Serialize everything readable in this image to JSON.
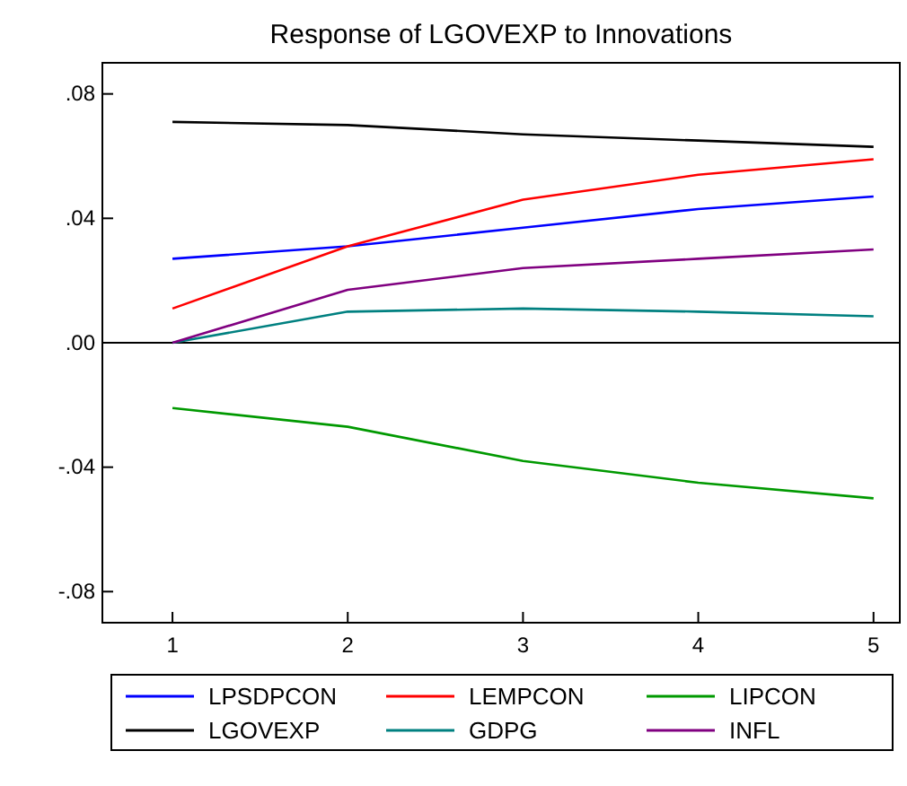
{
  "chart_data": {
    "type": "line",
    "title": "Response of LGOVEXP to Innovations",
    "x": [
      1,
      2,
      3,
      4,
      5
    ],
    "xlim": [
      0.6,
      5.15
    ],
    "xticks": [
      1,
      2,
      3,
      4,
      5
    ],
    "ylim": [
      -0.09,
      0.09
    ],
    "yticks": [
      {
        "value": 0.08,
        "label": ".08"
      },
      {
        "value": 0.04,
        "label": ".04"
      },
      {
        "value": 0,
        "label": ".00"
      },
      {
        "value": -0.04,
        "label": "-.04"
      },
      {
        "value": -0.08,
        "label": "-.08"
      }
    ],
    "series": [
      {
        "name": "LPSDPCON",
        "color": "#0000ff",
        "values": [
          0.027,
          0.031,
          0.037,
          0.043,
          0.047
        ]
      },
      {
        "name": "LEMPCON",
        "color": "#ff0000",
        "values": [
          0.011,
          0.031,
          0.046,
          0.054,
          0.059
        ]
      },
      {
        "name": "LIPCON",
        "color": "#009900",
        "values": [
          -0.021,
          -0.027,
          -0.038,
          -0.045,
          -0.05
        ]
      },
      {
        "name": "LGOVEXP",
        "color": "#000000",
        "values": [
          0.071,
          0.07,
          0.067,
          0.065,
          0.063
        ]
      },
      {
        "name": "GDPG",
        "color": "#008080",
        "values": [
          0,
          0.01,
          0.011,
          0.01,
          0.0085
        ]
      },
      {
        "name": "INFL",
        "color": "#800080",
        "values": [
          0,
          0.017,
          0.024,
          0.027,
          0.03
        ]
      }
    ],
    "ref_lines": [
      {
        "axis": "y",
        "value": 0,
        "color": "#000000"
      }
    ],
    "legend": "bottom",
    "grid": false,
    "marker": "none",
    "line_style": "solid"
  }
}
